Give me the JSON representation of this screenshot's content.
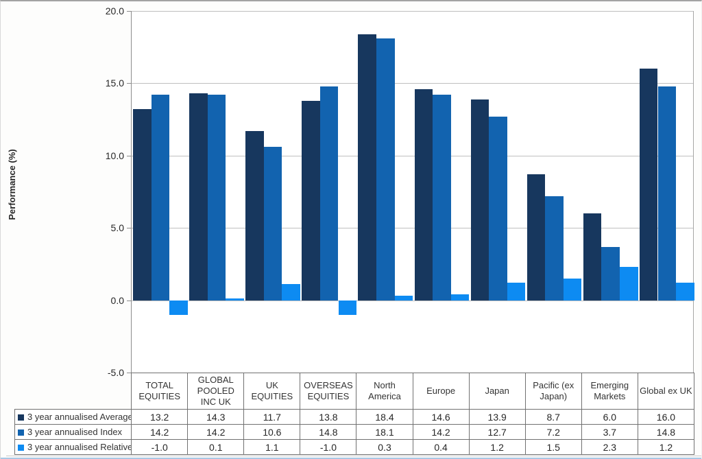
{
  "chart": {
    "y_axis_title": "Performance (%)"
  },
  "chart_data": {
    "type": "bar",
    "title": "",
    "xlabel": "",
    "ylabel": "Performance (%)",
    "ylim": [
      -5.0,
      20.0
    ],
    "ytick_interval": 5.0,
    "ytick_labels": [
      "20.0",
      "15.0",
      "10.0",
      "5.0",
      "0.0",
      "-5.0"
    ],
    "grid": true,
    "legend_position": "data-table-left",
    "data_table_shown": true,
    "categories": [
      "TOTAL EQUITIES",
      "GLOBAL POOLED INC UK",
      "UK EQUITIES",
      "OVERSEAS EQUITIES",
      "North America",
      "Europe",
      "Japan",
      "Pacific (ex Japan)",
      "Emerging Markets",
      "Global ex UK"
    ],
    "series": [
      {
        "name": "3 year annualised Average",
        "color": "#17375E",
        "values": [
          13.2,
          14.3,
          11.7,
          13.8,
          18.4,
          14.6,
          13.9,
          8.7,
          6.0,
          16.0
        ]
      },
      {
        "name": "3 year annualised Index",
        "color": "#1263AF",
        "values": [
          14.2,
          14.2,
          10.6,
          14.8,
          18.1,
          14.2,
          12.7,
          7.2,
          3.7,
          14.8
        ]
      },
      {
        "name": "3 year annualised Relative",
        "color": "#0D8BF2",
        "values": [
          -1.0,
          0.1,
          1.1,
          -1.0,
          0.3,
          0.4,
          1.2,
          1.5,
          2.3,
          1.2
        ]
      }
    ],
    "colors": {
      "gridline": "#BFBFBF",
      "axis_line": "#8C8C8C",
      "table_border": "#707070",
      "text": "#262626",
      "plot_background": "#FFFFFF"
    }
  }
}
